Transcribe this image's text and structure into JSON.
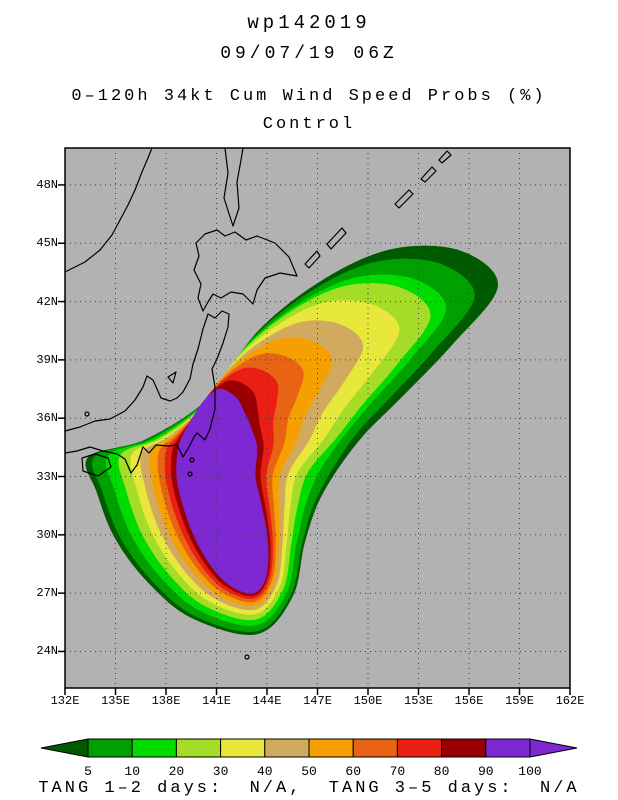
{
  "header": {
    "storm_id": "wp142019",
    "datetime": "09/07/19 06Z",
    "product_title": "0–120h 34kt Cum Wind Speed Probs (%)",
    "model": "Control"
  },
  "footer": {
    "text": "TANG 1–2 days:  N/A,  TANG 3–5 days:  N/A"
  },
  "chart_data": {
    "type": "contour-map",
    "title": "0–120h 34kt Cum Wind Speed Probs (%)",
    "subtitle": "Control",
    "storm_id": "wp142019",
    "valid_time": "09/07/19 06Z",
    "map_bg_color": "#b2b2b2",
    "grid_color": "#404040",
    "coast_color": "#000000",
    "x_axis": {
      "label": "longitude",
      "range_deg": [
        132,
        162
      ],
      "tick_deg": [
        132,
        135,
        138,
        141,
        144,
        147,
        150,
        153,
        156,
        159,
        162
      ],
      "ticks": [
        "132E",
        "135E",
        "138E",
        "141E",
        "144E",
        "147E",
        "150E",
        "153E",
        "156E",
        "159E",
        "162E"
      ]
    },
    "y_axis": {
      "label": "latitude",
      "range_deg": [
        22.12,
        49.9
      ],
      "tick_deg": [
        48,
        45,
        42,
        39,
        36,
        33,
        30,
        27,
        24
      ],
      "ticks": [
        "48N",
        "45N",
        "42N",
        "39N",
        "36N",
        "33N",
        "30N",
        "27N",
        "24N"
      ]
    },
    "grid": {
      "step_deg": 3,
      "style": "dotted"
    },
    "levels": [
      {
        "value": 5,
        "color": "#005A00",
        "w_banana": 1.0,
        "w_tongue": 1.0
      },
      {
        "value": 10,
        "color": "#00A000",
        "w_banana": 0.93,
        "w_tongue": 0.91
      },
      {
        "value": 20,
        "color": "#00DC00",
        "w_banana": 0.78,
        "w_tongue": 0.8
      },
      {
        "value": 30,
        "color": "#A5DC28",
        "w_banana": 0.64,
        "w_tongue": 0.74
      },
      {
        "value": 40,
        "color": "#E8E83C",
        "w_banana": 0.51,
        "w_tongue": 0.62
      },
      {
        "value": 50,
        "color": "#D2AA5F",
        "w_banana": 0.4,
        "w_tongue": 0.48
      },
      {
        "value": 60,
        "color": "#F5A000",
        "w_banana": 0.3,
        "w_tongue": 0.36
      },
      {
        "value": 70,
        "color": "#E86414",
        "w_banana": 0.21,
        "w_tongue": 0.25
      },
      {
        "value": 80,
        "color": "#EB1E14",
        "w_banana": 0.13,
        "w_tongue": 0.15
      },
      {
        "value": 90,
        "color": "#9B0000",
        "w_banana": 0.06,
        "w_tongue": 0.06
      },
      {
        "value": 100,
        "color": "#7D28D2",
        "w_banana": 0.0,
        "w_tongue": 0.0
      }
    ],
    "swath": {
      "outer_5pct_lonlat": [
        [
          133.4,
          34.0
        ],
        [
          133.9,
          32.2
        ],
        [
          135.0,
          29.8
        ],
        [
          137.0,
          27.5
        ],
        [
          139.6,
          25.7
        ],
        [
          143.4,
          24.9
        ],
        [
          145.5,
          26.8
        ],
        [
          146.2,
          29.5
        ],
        [
          147.0,
          31.6
        ],
        [
          148.2,
          33.4
        ],
        [
          149.8,
          35.2
        ],
        [
          152.0,
          37.1
        ],
        [
          155.0,
          39.8
        ],
        [
          157.7,
          42.8
        ],
        [
          155.5,
          44.6
        ],
        [
          151.5,
          44.7
        ],
        [
          147.5,
          43.2
        ],
        [
          143.5,
          40.5
        ],
        [
          140.5,
          37.0
        ],
        [
          136.8,
          34.9
        ]
      ],
      "core_100pct_lonlat": [
        [
          138.7,
          34.3
        ],
        [
          138.7,
          32.6
        ],
        [
          139.5,
          30.3
        ],
        [
          140.6,
          28.5
        ],
        [
          141.8,
          27.4
        ],
        [
          143.2,
          27.0
        ],
        [
          143.95,
          27.9
        ],
        [
          144.05,
          29.6
        ],
        [
          143.7,
          31.4
        ],
        [
          143.3,
          33.0
        ],
        [
          143.4,
          34.5
        ],
        [
          143.0,
          35.6
        ],
        [
          142.7,
          36.2
        ],
        [
          142.3,
          36.9
        ],
        [
          141.8,
          37.3
        ],
        [
          141.2,
          37.5
        ],
        [
          140.6,
          37.2
        ],
        [
          140.0,
          36.6
        ],
        [
          139.5,
          35.9
        ],
        [
          139.0,
          35.1
        ]
      ],
      "tongue_indices": [
        10,
        11,
        12,
        13,
        14,
        15,
        16,
        17
      ]
    },
    "colorbar": {
      "labels": [
        "5",
        "10",
        "20",
        "30",
        "40",
        "50",
        "60",
        "70",
        "80",
        "90",
        "100"
      ],
      "arrow_left_color": "#005A00",
      "arrow_right_color": "#7D28D2"
    }
  }
}
